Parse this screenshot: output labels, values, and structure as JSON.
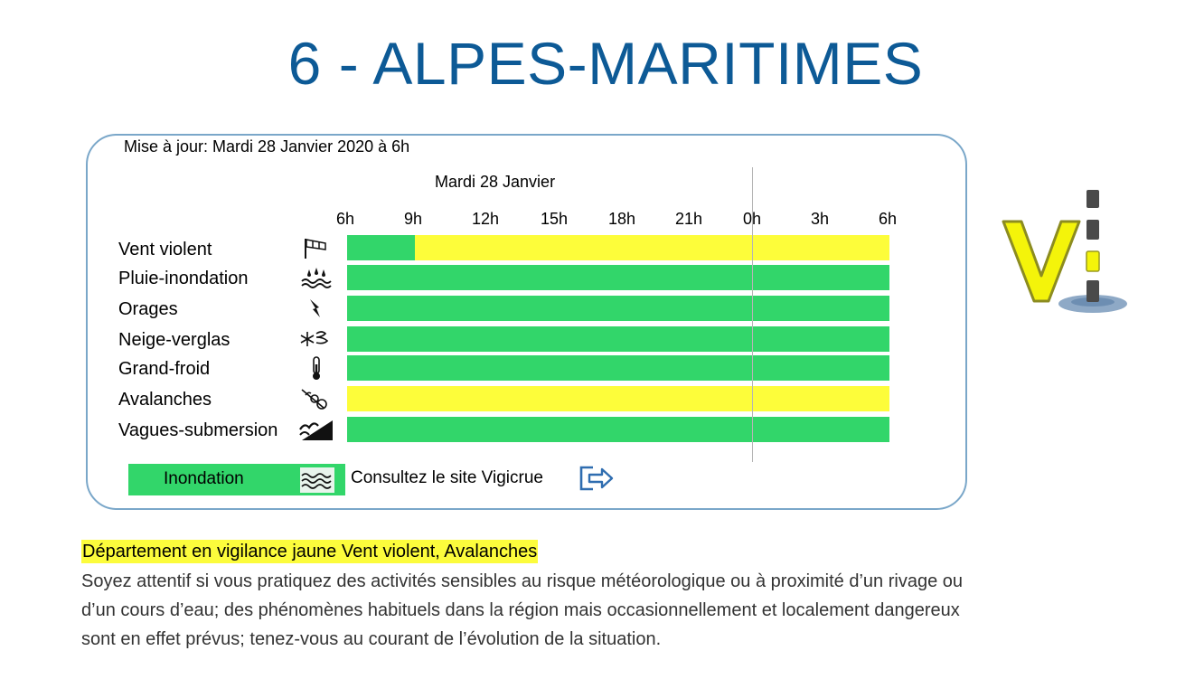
{
  "header": {
    "title": "6 - ALPES-MARITIMES"
  },
  "panel": {
    "updated": "Mise à jour: Mardi 28 Janvier 2020 à 6h",
    "day_label": "Mardi 28 Janvier",
    "hours": [
      "6h",
      "9h",
      "12h",
      "15h",
      "18h",
      "21h",
      "0h",
      "3h",
      "6h"
    ],
    "colors": {
      "green": "#32d66a",
      "yellow": "#fdfd3a"
    },
    "rows": [
      {
        "label": "Vent violent",
        "icon": "windsock-icon",
        "segments": [
          {
            "level": "green",
            "from_h": 0,
            "to_h": 3
          },
          {
            "level": "yellow",
            "from_h": 3,
            "to_h": 24
          }
        ]
      },
      {
        "label": "Pluie-inondation",
        "icon": "rain-flood-icon",
        "segments": [
          {
            "level": "green",
            "from_h": 0,
            "to_h": 24
          }
        ]
      },
      {
        "label": "Orages",
        "icon": "lightning-icon",
        "segments": [
          {
            "level": "green",
            "from_h": 0,
            "to_h": 24
          }
        ]
      },
      {
        "label": "Neige-verglas",
        "icon": "snow-ice-icon",
        "segments": [
          {
            "level": "green",
            "from_h": 0,
            "to_h": 24
          }
        ]
      },
      {
        "label": "Grand-froid",
        "icon": "thermometer-icon",
        "segments": [
          {
            "level": "green",
            "from_h": 0,
            "to_h": 24
          }
        ]
      },
      {
        "label": "Avalanches",
        "icon": "avalanche-icon",
        "segments": [
          {
            "level": "yellow",
            "from_h": 0,
            "to_h": 24
          }
        ]
      },
      {
        "label": "Vagues-submersion",
        "icon": "waves-submersion-icon",
        "segments": [
          {
            "level": "green",
            "from_h": 0,
            "to_h": 24
          }
        ]
      }
    ],
    "legend": {
      "label": "Inondation",
      "icon": "flood-waves-icon",
      "link_text": "Consultez le site Vigicrue",
      "link_icon": "exit-icon"
    }
  },
  "logo": {
    "icon": "vigilance-logo-icon"
  },
  "bulletin": {
    "headline": "Département en vigilance jaune Vent violent, Avalanches",
    "advice": "Soyez attentif si vous pratiquez des activités sensibles au risque météorologique ou à proximité d’un rivage ou d’un cours d’eau; des phénomènes habituels dans la région mais occasionnellement et localement dangereux sont en effet prévus; tenez-vous au courant de l’évolution de la situation."
  }
}
